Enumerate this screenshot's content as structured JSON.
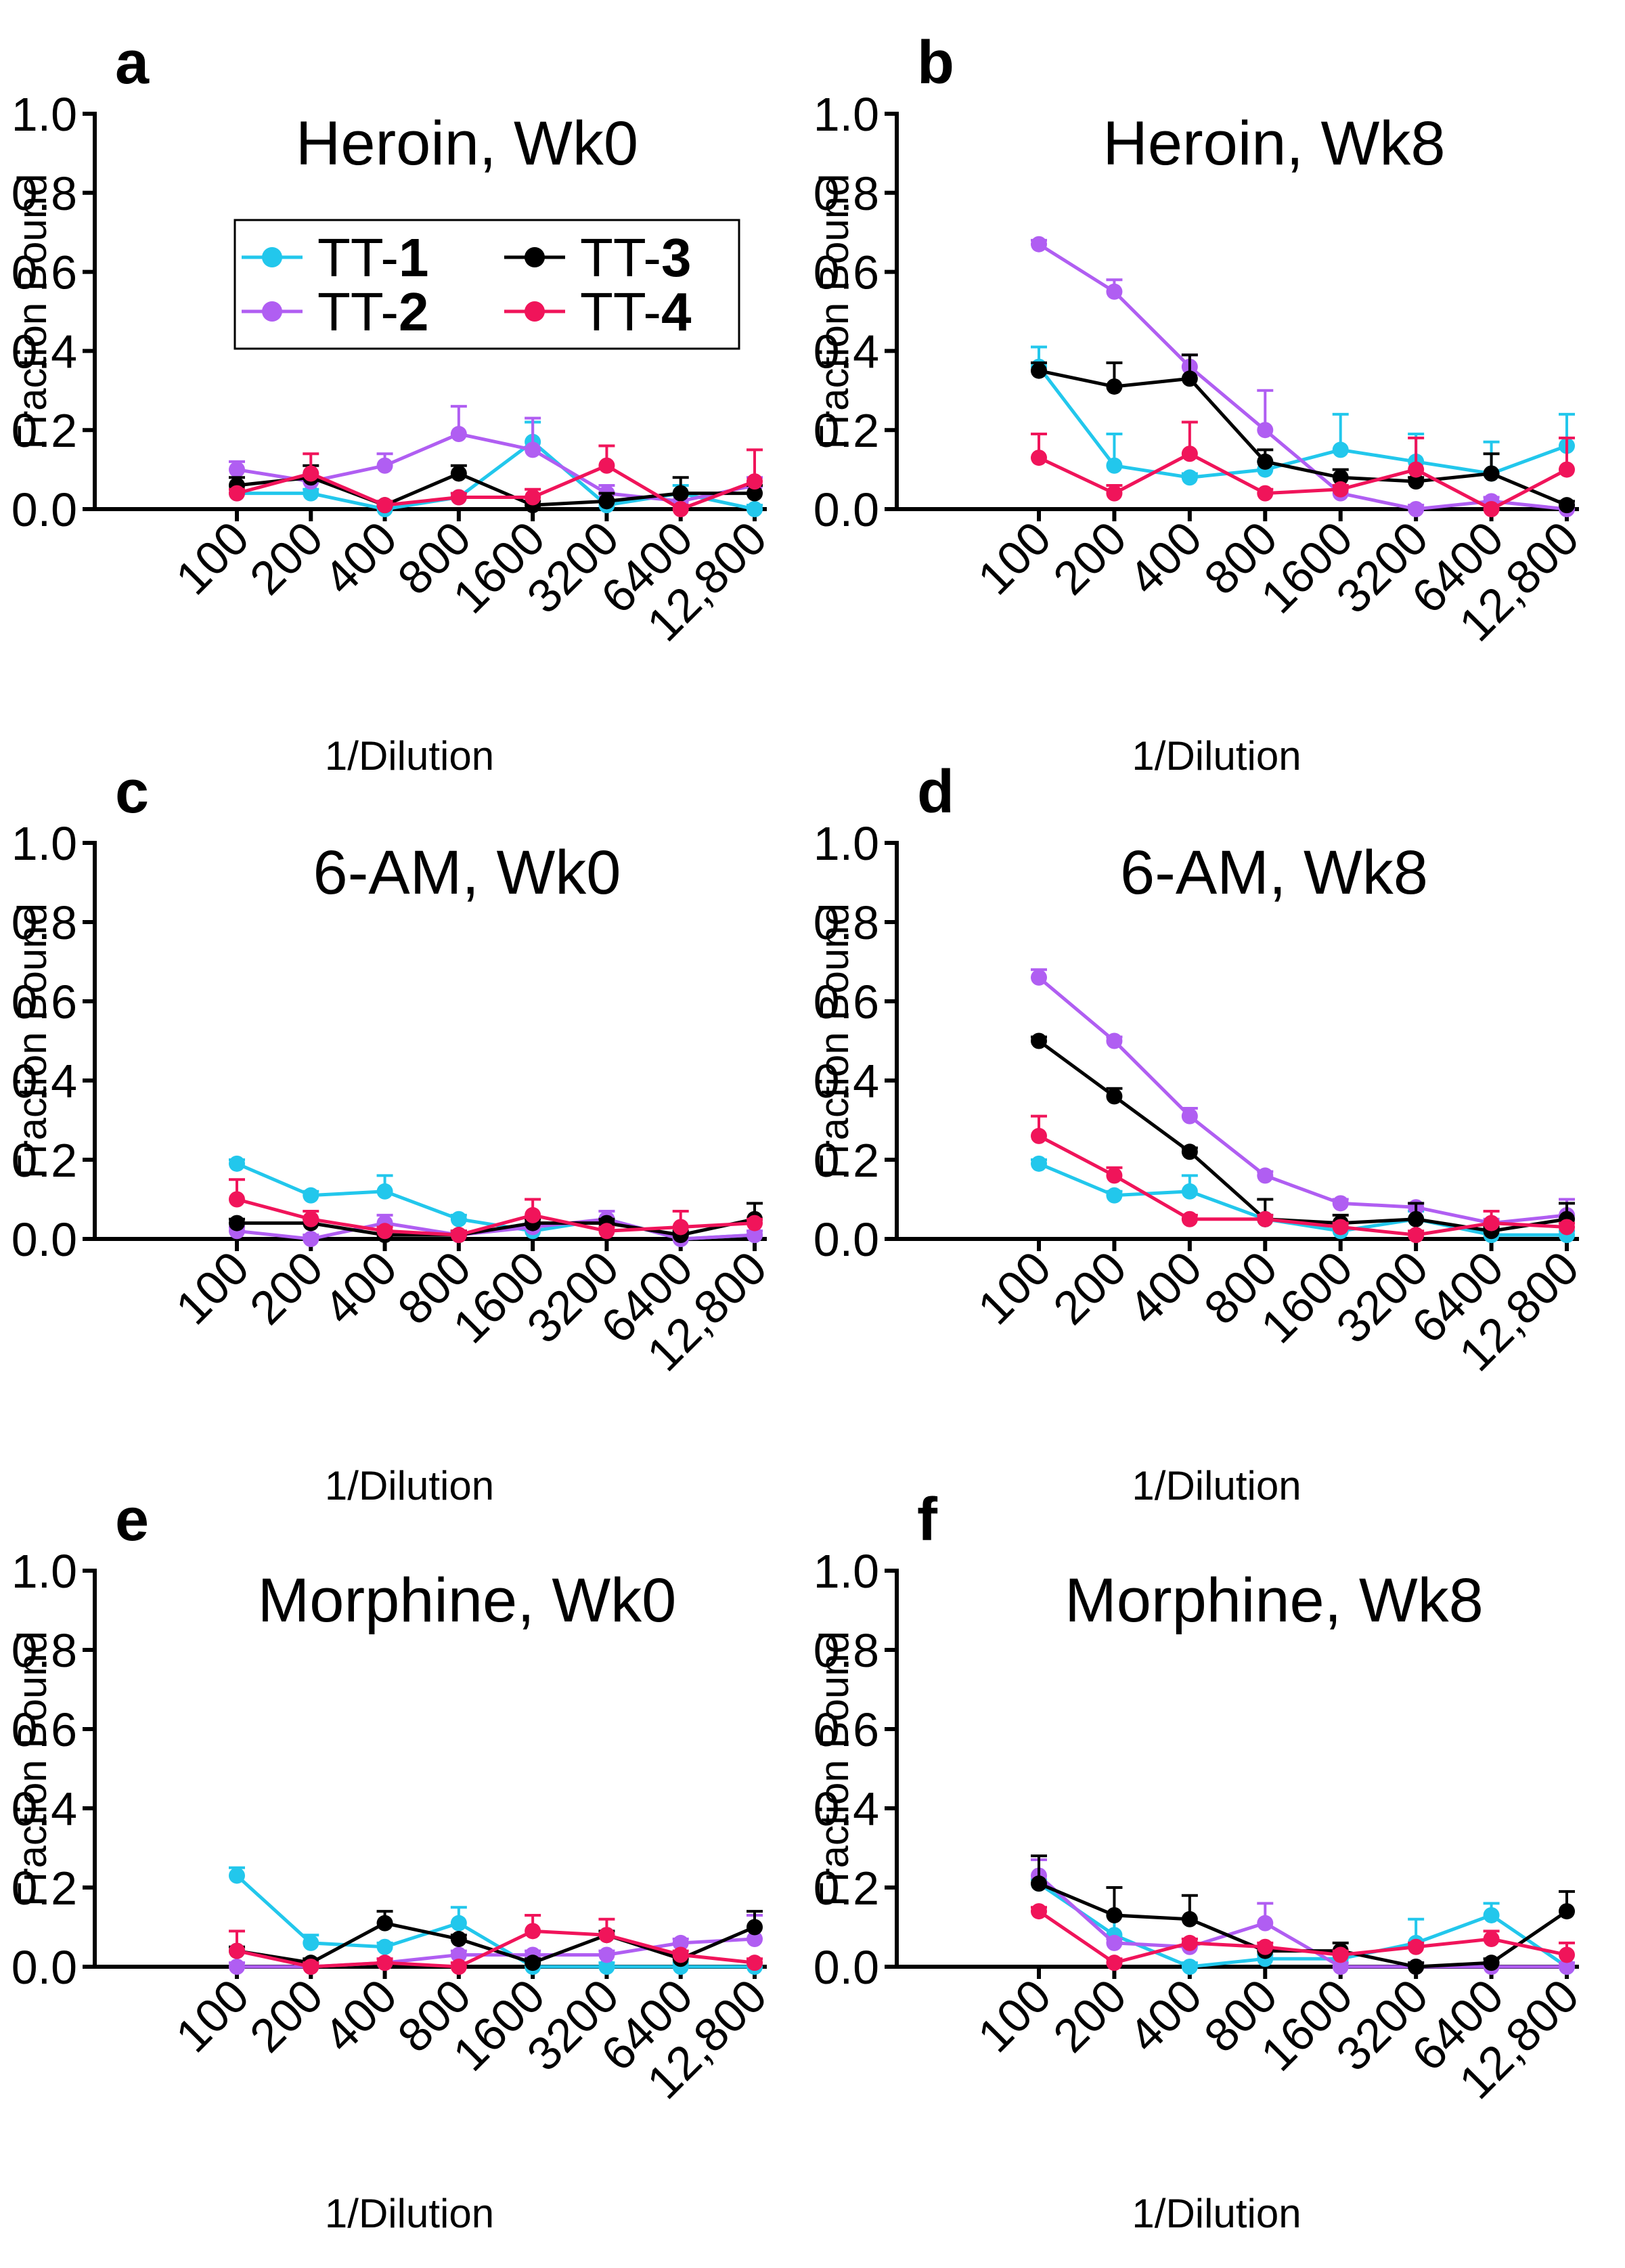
{
  "chart_data": [
    {
      "type": "line",
      "letter": "a",
      "title": "Heroin, Wk0",
      "xlabel": "1/Dilution",
      "ylabel": "Fraction Bound",
      "ylim": [
        0,
        1.0
      ],
      "yticks": [
        "0.0",
        "0.2",
        "0.4",
        "0.6",
        "0.8",
        "1.0"
      ],
      "categories": [
        "100",
        "200",
        "400",
        "800",
        "1600",
        "3200",
        "6400",
        "12,800"
      ],
      "series": [
        {
          "name": "TT-1",
          "color": "#22c7ec",
          "values": [
            0.04,
            0.04,
            0.0,
            0.03,
            0.17,
            0.01,
            0.04,
            0.0
          ],
          "err": [
            0.01,
            0.01,
            0.01,
            0.01,
            0.05,
            0.01,
            0.02,
            0.01
          ]
        },
        {
          "name": "TT-2",
          "color": "#b05ef2",
          "values": [
            0.1,
            0.07,
            0.11,
            0.19,
            0.15,
            0.04,
            0.02,
            0.06
          ],
          "err": [
            0.02,
            0.02,
            0.03,
            0.07,
            0.08,
            0.02,
            0.02,
            0.02
          ]
        },
        {
          "name": "TT-3",
          "color": "#000000",
          "values": [
            0.06,
            0.08,
            0.01,
            0.09,
            0.01,
            0.02,
            0.04,
            0.04
          ],
          "err": [
            0.02,
            0.03,
            0.01,
            0.02,
            0.01,
            0.02,
            0.04,
            0.02
          ]
        },
        {
          "name": "TT-4",
          "color": "#f0145a",
          "values": [
            0.04,
            0.09,
            0.01,
            0.03,
            0.03,
            0.11,
            0.0,
            0.07
          ],
          "err": [
            0.01,
            0.05,
            0.01,
            0.01,
            0.02,
            0.05,
            0.01,
            0.08
          ]
        }
      ]
    },
    {
      "type": "line",
      "letter": "b",
      "title": "Heroin, Wk8",
      "xlabel": "1/Dilution",
      "ylabel": "Fraction Bound",
      "ylim": [
        0,
        1.0
      ],
      "yticks": [
        "0.0",
        "0.2",
        "0.4",
        "0.6",
        "0.8",
        "1.0"
      ],
      "categories": [
        "100",
        "200",
        "400",
        "800",
        "1600",
        "3200",
        "6400",
        "12,800"
      ],
      "series": [
        {
          "name": "TT-1",
          "color": "#22c7ec",
          "values": [
            0.36,
            0.11,
            0.08,
            0.1,
            0.15,
            0.12,
            0.09,
            0.16
          ],
          "err": [
            0.05,
            0.08,
            0.01,
            0.02,
            0.09,
            0.07,
            0.08,
            0.08
          ]
        },
        {
          "name": "TT-2",
          "color": "#b05ef2",
          "values": [
            0.67,
            0.55,
            0.36,
            0.2,
            0.04,
            0.0,
            0.02,
            0.0
          ],
          "err": [
            0.01,
            0.03,
            0.03,
            0.1,
            0.02,
            0.01,
            0.01,
            0.01
          ]
        },
        {
          "name": "TT-3",
          "color": "#000000",
          "values": [
            0.35,
            0.31,
            0.33,
            0.12,
            0.08,
            0.07,
            0.09,
            0.01
          ],
          "err": [
            0.02,
            0.06,
            0.06,
            0.03,
            0.02,
            0.01,
            0.05,
            0.01
          ]
        },
        {
          "name": "TT-4",
          "color": "#f0145a",
          "values": [
            0.13,
            0.04,
            0.14,
            0.04,
            0.05,
            0.1,
            0.0,
            0.1
          ],
          "err": [
            0.06,
            0.02,
            0.08,
            0.01,
            0.01,
            0.08,
            0.01,
            0.08
          ]
        }
      ]
    },
    {
      "type": "line",
      "letter": "c",
      "title": "6-AM, Wk0",
      "xlabel": "1/Dilution",
      "ylabel": "Fraction Bound",
      "ylim": [
        0,
        1.0
      ],
      "yticks": [
        "0.0",
        "0.2",
        "0.4",
        "0.6",
        "0.8",
        "1.0"
      ],
      "categories": [
        "100",
        "200",
        "400",
        "800",
        "1600",
        "3200",
        "6400",
        "12,800"
      ],
      "series": [
        {
          "name": "TT-1",
          "color": "#22c7ec",
          "values": [
            0.19,
            0.11,
            0.12,
            0.05,
            0.02,
            0.05,
            0.0,
            0.01
          ],
          "err": [
            0.01,
            0.01,
            0.04,
            0.01,
            0.01,
            0.02,
            0.01,
            0.01
          ]
        },
        {
          "name": "TT-2",
          "color": "#b05ef2",
          "values": [
            0.02,
            0.0,
            0.04,
            0.01,
            0.03,
            0.05,
            0.0,
            0.01
          ],
          "err": [
            0.01,
            0.01,
            0.02,
            0.01,
            0.01,
            0.02,
            0.01,
            0.01
          ]
        },
        {
          "name": "TT-3",
          "color": "#000000",
          "values": [
            0.04,
            0.04,
            0.01,
            0.01,
            0.04,
            0.04,
            0.01,
            0.05
          ],
          "err": [
            0.01,
            0.01,
            0.01,
            0.01,
            0.01,
            0.01,
            0.01,
            0.04
          ]
        },
        {
          "name": "TT-4",
          "color": "#f0145a",
          "values": [
            0.1,
            0.05,
            0.02,
            0.01,
            0.06,
            0.02,
            0.03,
            0.04
          ],
          "err": [
            0.05,
            0.02,
            0.01,
            0.01,
            0.04,
            0.01,
            0.04,
            0.01
          ]
        }
      ]
    },
    {
      "type": "line",
      "letter": "d",
      "title": "6-AM, Wk8",
      "xlabel": "1/Dilution",
      "ylabel": "Fraction Bound",
      "ylim": [
        0,
        1.0
      ],
      "yticks": [
        "0.0",
        "0.2",
        "0.4",
        "0.6",
        "0.8",
        "1.0"
      ],
      "categories": [
        "100",
        "200",
        "400",
        "800",
        "1600",
        "3200",
        "6400",
        "12,800"
      ],
      "series": [
        {
          "name": "TT-1",
          "color": "#22c7ec",
          "values": [
            0.19,
            0.11,
            0.12,
            0.05,
            0.02,
            0.05,
            0.01,
            0.01
          ],
          "err": [
            0.01,
            0.01,
            0.04,
            0.01,
            0.01,
            0.02,
            0.01,
            0.01
          ]
        },
        {
          "name": "TT-2",
          "color": "#b05ef2",
          "values": [
            0.66,
            0.5,
            0.31,
            0.16,
            0.09,
            0.08,
            0.04,
            0.06
          ],
          "err": [
            0.02,
            0.01,
            0.02,
            0.01,
            0.01,
            0.01,
            0.01,
            0.04
          ]
        },
        {
          "name": "TT-3",
          "color": "#000000",
          "values": [
            0.5,
            0.36,
            0.22,
            0.05,
            0.04,
            0.05,
            0.02,
            0.05
          ],
          "err": [
            0.01,
            0.02,
            0.01,
            0.05,
            0.02,
            0.04,
            0.01,
            0.04
          ]
        },
        {
          "name": "TT-4",
          "color": "#f0145a",
          "values": [
            0.26,
            0.16,
            0.05,
            0.05,
            0.03,
            0.01,
            0.04,
            0.03
          ],
          "err": [
            0.05,
            0.02,
            0.01,
            0.01,
            0.01,
            0.01,
            0.03,
            0.01
          ]
        }
      ]
    },
    {
      "type": "line",
      "letter": "e",
      "title": "Morphine, Wk0",
      "xlabel": "1/Dilution",
      "ylabel": "Fraction Bound",
      "ylim": [
        0,
        1.0
      ],
      "yticks": [
        "0.0",
        "0.2",
        "0.4",
        "0.6",
        "0.8",
        "1.0"
      ],
      "categories": [
        "100",
        "200",
        "400",
        "800",
        "1600",
        "3200",
        "6400",
        "12,800"
      ],
      "series": [
        {
          "name": "TT-1",
          "color": "#22c7ec",
          "values": [
            0.23,
            0.06,
            0.05,
            0.11,
            0.0,
            0.0,
            0.0,
            0.0
          ],
          "err": [
            0.02,
            0.02,
            0.01,
            0.04,
            0.01,
            0.01,
            0.01,
            0.01
          ]
        },
        {
          "name": "TT-2",
          "color": "#b05ef2",
          "values": [
            0.0,
            0.0,
            0.01,
            0.03,
            0.03,
            0.03,
            0.06,
            0.07
          ],
          "err": [
            0.01,
            0.01,
            0.01,
            0.01,
            0.01,
            0.01,
            0.01,
            0.06
          ]
        },
        {
          "name": "TT-3",
          "color": "#000000",
          "values": [
            0.04,
            0.01,
            0.11,
            0.07,
            0.01,
            0.08,
            0.02,
            0.1
          ],
          "err": [
            0.01,
            0.01,
            0.03,
            0.01,
            0.01,
            0.01,
            0.01,
            0.04
          ]
        },
        {
          "name": "TT-4",
          "color": "#f0145a",
          "values": [
            0.04,
            0.0,
            0.01,
            0.0,
            0.09,
            0.08,
            0.03,
            0.01
          ],
          "err": [
            0.05,
            0.01,
            0.01,
            0.01,
            0.04,
            0.04,
            0.01,
            0.01
          ]
        }
      ]
    },
    {
      "type": "line",
      "letter": "f",
      "title": "Morphine, Wk8",
      "xlabel": "1/Dilution",
      "ylabel": "Fraction Bound",
      "ylim": [
        0,
        1.0
      ],
      "yticks": [
        "0.0",
        "0.2",
        "0.4",
        "0.6",
        "0.8",
        "1.0"
      ],
      "categories": [
        "100",
        "200",
        "400",
        "800",
        "1600",
        "3200",
        "6400",
        "12,800"
      ],
      "series": [
        {
          "name": "TT-1",
          "color": "#22c7ec",
          "values": [
            0.21,
            0.08,
            0.0,
            0.02,
            0.02,
            0.06,
            0.13,
            0.0
          ],
          "err": [
            0.01,
            0.05,
            0.01,
            0.01,
            0.01,
            0.06,
            0.03,
            0.01
          ]
        },
        {
          "name": "TT-2",
          "color": "#b05ef2",
          "values": [
            0.23,
            0.06,
            0.05,
            0.11,
            0.0,
            0.0,
            0.0,
            0.0
          ],
          "err": [
            0.04,
            0.01,
            0.02,
            0.05,
            0.01,
            0.01,
            0.01,
            0.01
          ]
        },
        {
          "name": "TT-3",
          "color": "#000000",
          "values": [
            0.21,
            0.13,
            0.12,
            0.04,
            0.04,
            0.0,
            0.01,
            0.14
          ],
          "err": [
            0.07,
            0.07,
            0.06,
            0.01,
            0.02,
            0.01,
            0.01,
            0.05
          ]
        },
        {
          "name": "TT-4",
          "color": "#f0145a",
          "values": [
            0.14,
            0.01,
            0.06,
            0.05,
            0.03,
            0.05,
            0.07,
            0.03
          ],
          "err": [
            0.01,
            0.01,
            0.01,
            0.01,
            0.01,
            0.01,
            0.02,
            0.03
          ]
        }
      ]
    }
  ],
  "legend": {
    "entries": [
      {
        "prefix": "TT-",
        "num": "1",
        "color": "#22c7ec"
      },
      {
        "prefix": "TT-",
        "num": "3",
        "color": "#000000"
      },
      {
        "prefix": "TT-",
        "num": "2",
        "color": "#b05ef2"
      },
      {
        "prefix": "TT-",
        "num": "4",
        "color": "#f0145a"
      }
    ]
  }
}
